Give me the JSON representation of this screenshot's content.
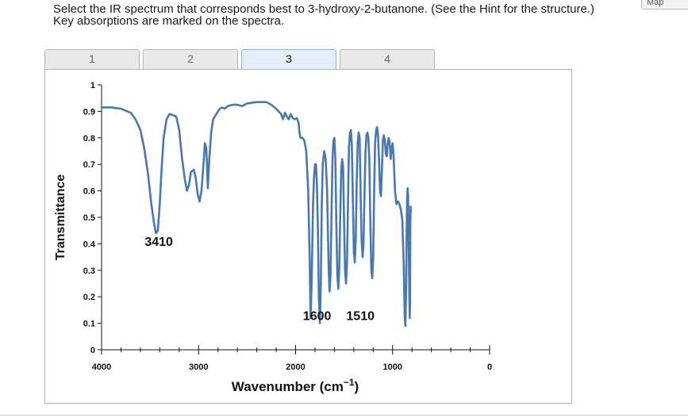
{
  "question": {
    "line1": "Select the IR spectrum that corresponds best to 3-hydroxy-2-butanone. (See the Hint for the structure.)",
    "line2": "Key absorptions are marked on the spectra."
  },
  "map_button": {
    "label": "Map"
  },
  "tabs": [
    {
      "label": "1",
      "active": false
    },
    {
      "label": "2",
      "active": false
    },
    {
      "label": "3",
      "active": true
    },
    {
      "label": "4",
      "active": false
    }
  ],
  "colors": {
    "line": "#4a78ad",
    "active_tab": "#e3eef8"
  },
  "chart_data": {
    "type": "line",
    "xlabel": "Wavenumber (cm",
    "xlabel_sup": "−1",
    "xlabel_close": ")",
    "ylabel": "Transmittance",
    "xlim": [
      4000,
      0
    ],
    "ylim": [
      0,
      1
    ],
    "x_ticks": [
      4000,
      3000,
      2000,
      1000,
      0
    ],
    "x_tick_labels": [
      "4000",
      "3000",
      "2000",
      "1000",
      "0"
    ],
    "y_ticks": [
      0,
      0.1,
      0.2,
      0.3,
      0.4,
      0.5,
      0.6,
      0.7,
      0.8,
      0.9,
      1
    ],
    "y_tick_labels": [
      "0",
      "0.1",
      "0.2",
      "0.3",
      "0.4",
      "0.5",
      "0.6",
      "0.7",
      "0.8",
      "0.9",
      "1"
    ],
    "grid": false,
    "annotations": [
      {
        "text": "3410",
        "x": 3410,
        "y": 0.41
      },
      {
        "text": "1600",
        "x": 1600,
        "y": 0.13
      },
      {
        "text": "1510",
        "x": 1510,
        "y": 0.13
      }
    ],
    "series": [
      {
        "points": [
          [
            4000,
            0.915
          ],
          [
            3900,
            0.915
          ],
          [
            3800,
            0.91
          ],
          [
            3700,
            0.895
          ],
          [
            3650,
            0.87
          ],
          [
            3600,
            0.83
          ],
          [
            3560,
            0.76
          ],
          [
            3520,
            0.66
          ],
          [
            3490,
            0.56
          ],
          [
            3460,
            0.48
          ],
          [
            3440,
            0.44
          ],
          [
            3420,
            0.45
          ],
          [
            3400,
            0.55
          ],
          [
            3380,
            0.69
          ],
          [
            3360,
            0.8
          ],
          [
            3330,
            0.87
          ],
          [
            3300,
            0.89
          ],
          [
            3260,
            0.885
          ],
          [
            3230,
            0.88
          ],
          [
            3200,
            0.83
          ],
          [
            3170,
            0.72
          ],
          [
            3140,
            0.64
          ],
          [
            3120,
            0.6
          ],
          [
            3100,
            0.62
          ],
          [
            3080,
            0.67
          ],
          [
            3050,
            0.68
          ],
          [
            3030,
            0.65
          ],
          [
            3010,
            0.59
          ],
          [
            2990,
            0.56
          ],
          [
            2970,
            0.6
          ],
          [
            2950,
            0.7
          ],
          [
            2935,
            0.78
          ],
          [
            2920,
            0.76
          ],
          [
            2905,
            0.61
          ],
          [
            2890,
            0.72
          ],
          [
            2870,
            0.82
          ],
          [
            2850,
            0.87
          ],
          [
            2800,
            0.9
          ],
          [
            2780,
            0.91
          ],
          [
            2760,
            0.915
          ],
          [
            2730,
            0.91
          ],
          [
            2700,
            0.92
          ],
          [
            2650,
            0.925
          ],
          [
            2600,
            0.925
          ],
          [
            2550,
            0.92
          ],
          [
            2500,
            0.93
          ],
          [
            2400,
            0.935
          ],
          [
            2300,
            0.935
          ],
          [
            2250,
            0.925
          ],
          [
            2200,
            0.91
          ],
          [
            2150,
            0.89
          ],
          [
            2130,
            0.87
          ],
          [
            2110,
            0.895
          ],
          [
            2090,
            0.88
          ],
          [
            2070,
            0.87
          ],
          [
            2050,
            0.89
          ],
          [
            2030,
            0.875
          ],
          [
            2010,
            0.87
          ],
          [
            1990,
            0.875
          ],
          [
            1970,
            0.86
          ],
          [
            1960,
            0.82
          ],
          [
            1950,
            0.8
          ],
          [
            1930,
            0.8
          ],
          [
            1910,
            0.79
          ],
          [
            1890,
            0.75
          ],
          [
            1870,
            0.6
          ],
          [
            1855,
            0.35
          ],
          [
            1845,
            0.12
          ],
          [
            1835,
            0.25
          ],
          [
            1820,
            0.55
          ],
          [
            1810,
            0.65
          ],
          [
            1800,
            0.7
          ],
          [
            1790,
            0.7
          ],
          [
            1780,
            0.62
          ],
          [
            1770,
            0.45
          ],
          [
            1760,
            0.2
          ],
          [
            1750,
            0.1
          ],
          [
            1740,
            0.25
          ],
          [
            1730,
            0.55
          ],
          [
            1720,
            0.7
          ],
          [
            1705,
            0.75
          ],
          [
            1690,
            0.72
          ],
          [
            1675,
            0.6
          ],
          [
            1660,
            0.32
          ],
          [
            1650,
            0.22
          ],
          [
            1640,
            0.28
          ],
          [
            1630,
            0.5
          ],
          [
            1620,
            0.72
          ],
          [
            1610,
            0.79
          ],
          [
            1600,
            0.8
          ],
          [
            1590,
            0.72
          ],
          [
            1580,
            0.48
          ],
          [
            1570,
            0.28
          ],
          [
            1560,
            0.23
          ],
          [
            1550,
            0.3
          ],
          [
            1540,
            0.5
          ],
          [
            1530,
            0.68
          ],
          [
            1520,
            0.72
          ],
          [
            1510,
            0.69
          ],
          [
            1500,
            0.48
          ],
          [
            1490,
            0.3
          ],
          [
            1480,
            0.25
          ],
          [
            1470,
            0.33
          ],
          [
            1460,
            0.55
          ],
          [
            1450,
            0.76
          ],
          [
            1440,
            0.82
          ],
          [
            1430,
            0.83
          ],
          [
            1420,
            0.77
          ],
          [
            1410,
            0.58
          ],
          [
            1400,
            0.37
          ],
          [
            1390,
            0.33
          ],
          [
            1380,
            0.42
          ],
          [
            1370,
            0.63
          ],
          [
            1360,
            0.78
          ],
          [
            1350,
            0.82
          ],
          [
            1340,
            0.8
          ],
          [
            1330,
            0.6
          ],
          [
            1320,
            0.42
          ],
          [
            1310,
            0.35
          ],
          [
            1300,
            0.4
          ],
          [
            1290,
            0.58
          ],
          [
            1280,
            0.74
          ],
          [
            1270,
            0.81
          ],
          [
            1260,
            0.82
          ],
          [
            1250,
            0.8
          ],
          [
            1240,
            0.72
          ],
          [
            1230,
            0.5
          ],
          [
            1220,
            0.3
          ],
          [
            1210,
            0.27
          ],
          [
            1200,
            0.35
          ],
          [
            1190,
            0.6
          ],
          [
            1180,
            0.78
          ],
          [
            1170,
            0.83
          ],
          [
            1160,
            0.84
          ],
          [
            1150,
            0.81
          ],
          [
            1140,
            0.72
          ],
          [
            1130,
            0.6
          ],
          [
            1120,
            0.58
          ],
          [
            1110,
            0.68
          ],
          [
            1100,
            0.79
          ],
          [
            1090,
            0.81
          ],
          [
            1080,
            0.79
          ],
          [
            1070,
            0.74
          ],
          [
            1060,
            0.73
          ],
          [
            1050,
            0.78
          ],
          [
            1040,
            0.8
          ],
          [
            1030,
            0.78
          ],
          [
            1020,
            0.72
          ],
          [
            1010,
            0.76
          ],
          [
            1000,
            0.78
          ],
          [
            990,
            0.73
          ],
          [
            975,
            0.6
          ],
          [
            960,
            0.55
          ],
          [
            945,
            0.56
          ],
          [
            930,
            0.55
          ],
          [
            915,
            0.53
          ],
          [
            900,
            0.49
          ],
          [
            885,
            0.32
          ],
          [
            875,
            0.12
          ],
          [
            868,
            0.09
          ],
          [
            860,
            0.25
          ],
          [
            855,
            0.45
          ],
          [
            850,
            0.58
          ],
          [
            845,
            0.61
          ],
          [
            840,
            0.58
          ],
          [
            836,
            0.48
          ],
          [
            832,
            0.35
          ],
          [
            828,
            0.22
          ],
          [
            824,
            0.12
          ],
          [
            820,
            0.18
          ],
          [
            818,
            0.45
          ],
          [
            815,
            0.54
          ],
          [
            812,
            0.52
          ]
        ]
      }
    ]
  }
}
